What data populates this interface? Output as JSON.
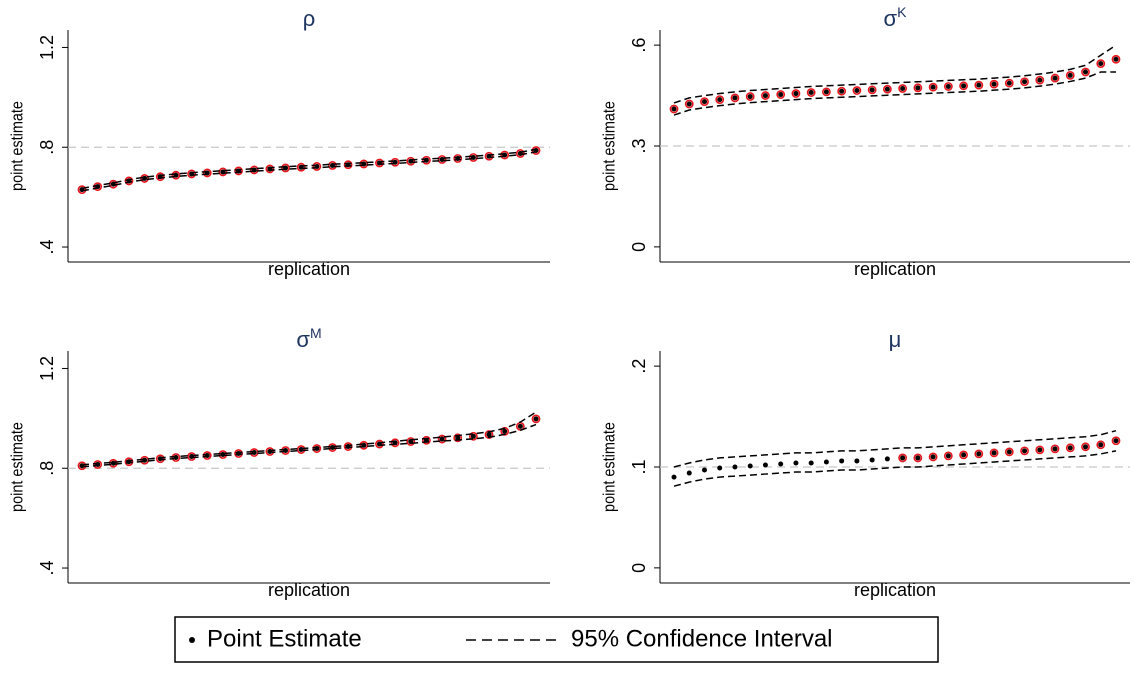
{
  "chart_data": [
    {
      "type": "line",
      "title": "ρ",
      "y_label": "point estimate",
      "x_label": "replication",
      "ylim": [
        0.34,
        1.27
      ],
      "yticks": [
        {
          "value": 0.4,
          "label": ".4"
        },
        {
          "value": 0.8,
          "label": ".8"
        },
        1.2
      ],
      "refline": 0.8,
      "series": [
        {
          "style": "dots",
          "color": "#000000",
          "values": [
            0.63,
            0.642,
            0.652,
            0.665,
            0.675,
            0.682,
            0.688,
            0.693,
            0.697,
            0.701,
            0.705,
            0.709,
            0.713,
            0.717,
            0.72,
            0.723,
            0.727,
            0.73,
            0.733,
            0.737,
            0.74,
            0.744,
            0.748,
            0.751,
            0.755,
            0.759,
            0.764,
            0.769,
            0.775,
            0.787
          ]
        },
        {
          "style": "circles",
          "color": "#e8141c",
          "values": [
            0.63,
            0.642,
            0.652,
            0.665,
            0.675,
            0.682,
            0.688,
            0.693,
            0.697,
            0.701,
            0.705,
            0.709,
            0.713,
            0.717,
            0.72,
            0.723,
            0.727,
            0.73,
            0.733,
            0.737,
            0.74,
            0.744,
            0.748,
            0.751,
            0.755,
            0.759,
            0.764,
            0.769,
            0.775,
            0.787
          ]
        },
        {
          "style": "dash",
          "color": "#000000",
          "values": [
            0.625,
            0.637,
            0.647,
            0.66,
            0.67,
            0.677,
            0.683,
            0.688,
            0.692,
            0.696,
            0.7,
            0.704,
            0.708,
            0.712,
            0.715,
            0.718,
            0.722,
            0.725,
            0.728,
            0.732,
            0.735,
            0.739,
            0.743,
            0.746,
            0.75,
            0.754,
            0.759,
            0.764,
            0.77,
            0.782
          ]
        },
        {
          "style": "dash",
          "color": "#000000",
          "values": [
            0.635,
            0.647,
            0.657,
            0.67,
            0.68,
            0.687,
            0.693,
            0.698,
            0.702,
            0.706,
            0.71,
            0.714,
            0.718,
            0.722,
            0.725,
            0.728,
            0.732,
            0.735,
            0.738,
            0.742,
            0.745,
            0.749,
            0.753,
            0.756,
            0.76,
            0.764,
            0.769,
            0.774,
            0.78,
            0.792
          ]
        }
      ]
    },
    {
      "type": "line",
      "title": "σ",
      "title_superscript": "K",
      "y_label": "point estimate",
      "x_label": "replication",
      "ylim": [
        -0.045,
        0.645
      ],
      "yticks": [
        0,
        {
          "value": 0.3,
          "label": ".3"
        },
        {
          "value": 0.6,
          "label": ".6"
        }
      ],
      "refline": 0.3,
      "series": [
        {
          "style": "dots",
          "color": "#000000",
          "values": [
            0.41,
            0.425,
            0.432,
            0.438,
            0.443,
            0.447,
            0.45,
            0.453,
            0.456,
            0.459,
            0.461,
            0.463,
            0.465,
            0.467,
            0.469,
            0.471,
            0.473,
            0.475,
            0.477,
            0.479,
            0.481,
            0.484,
            0.487,
            0.491,
            0.496,
            0.502,
            0.51,
            0.52,
            0.545,
            0.558
          ]
        },
        {
          "style": "circles",
          "color": "#e8141c",
          "values": [
            0.41,
            0.425,
            0.432,
            0.438,
            0.443,
            0.447,
            0.45,
            0.453,
            0.456,
            0.459,
            0.461,
            0.463,
            0.465,
            0.467,
            0.469,
            0.471,
            0.473,
            0.475,
            0.477,
            0.479,
            0.481,
            0.484,
            0.487,
            0.491,
            0.496,
            0.502,
            0.51,
            0.52,
            0.545,
            0.558
          ]
        },
        {
          "style": "dash",
          "color": "#000000",
          "values": [
            0.392,
            0.407,
            0.414,
            0.42,
            0.425,
            0.429,
            0.432,
            0.435,
            0.438,
            0.441,
            0.443,
            0.445,
            0.447,
            0.449,
            0.451,
            0.453,
            0.455,
            0.457,
            0.459,
            0.461,
            0.463,
            0.466,
            0.469,
            0.473,
            0.478,
            0.484,
            0.492,
            0.502,
            0.52,
            0.52
          ]
        },
        {
          "style": "dash",
          "color": "#000000",
          "values": [
            0.428,
            0.443,
            0.45,
            0.456,
            0.461,
            0.465,
            0.468,
            0.471,
            0.474,
            0.477,
            0.479,
            0.481,
            0.483,
            0.485,
            0.487,
            0.489,
            0.491,
            0.493,
            0.495,
            0.497,
            0.499,
            0.502,
            0.505,
            0.509,
            0.514,
            0.52,
            0.528,
            0.54,
            0.57,
            0.6
          ]
        }
      ]
    },
    {
      "type": "line",
      "title": "σ",
      "title_superscript": "M",
      "y_label": "point estimate",
      "x_label": "replication",
      "ylim": [
        0.34,
        1.27
      ],
      "yticks": [
        {
          "value": 0.4,
          "label": ".4"
        },
        {
          "value": 0.8,
          "label": ".8"
        },
        1.2
      ],
      "refline": 0.8,
      "series": [
        {
          "style": "dots",
          "color": "#000000",
          "values": [
            0.81,
            0.815,
            0.82,
            0.826,
            0.832,
            0.838,
            0.843,
            0.847,
            0.851,
            0.855,
            0.859,
            0.863,
            0.867,
            0.871,
            0.875,
            0.879,
            0.883,
            0.887,
            0.892,
            0.897,
            0.902,
            0.907,
            0.912,
            0.917,
            0.922,
            0.928,
            0.935,
            0.948,
            0.968,
            0.998
          ]
        },
        {
          "style": "circles",
          "color": "#e8141c",
          "values": [
            0.81,
            0.815,
            0.82,
            0.826,
            0.832,
            0.838,
            0.843,
            0.847,
            0.851,
            0.855,
            0.859,
            0.863,
            0.867,
            0.871,
            0.875,
            0.879,
            0.883,
            0.887,
            0.892,
            0.897,
            0.902,
            0.907,
            0.912,
            0.917,
            0.922,
            0.928,
            0.935,
            0.948,
            0.968,
            0.998
          ]
        },
        {
          "style": "dash",
          "color": "#000000",
          "values": [
            0.806,
            0.811,
            0.816,
            0.822,
            0.828,
            0.834,
            0.839,
            0.843,
            0.847,
            0.851,
            0.855,
            0.859,
            0.863,
            0.867,
            0.871,
            0.875,
            0.879,
            0.883,
            0.887,
            0.892,
            0.896,
            0.9,
            0.905,
            0.909,
            0.913,
            0.918,
            0.924,
            0.936,
            0.952,
            0.975
          ]
        },
        {
          "style": "dash",
          "color": "#000000",
          "values": [
            0.814,
            0.819,
            0.824,
            0.83,
            0.836,
            0.842,
            0.847,
            0.851,
            0.855,
            0.859,
            0.863,
            0.867,
            0.871,
            0.875,
            0.879,
            0.883,
            0.887,
            0.891,
            0.897,
            0.902,
            0.908,
            0.914,
            0.919,
            0.925,
            0.931,
            0.938,
            0.946,
            0.96,
            0.985,
            1.025
          ]
        }
      ]
    },
    {
      "type": "line",
      "title": "μ",
      "y_label": "point estimate",
      "x_label": "replication",
      "ylim": [
        -0.015,
        0.215
      ],
      "yticks": [
        0,
        {
          "value": 0.1,
          "label": ".1"
        },
        {
          "value": 0.2,
          "label": ".2"
        }
      ],
      "refline": 0.1,
      "series": [
        {
          "style": "dots",
          "color": "#000000",
          "values": [
            0.09,
            0.094,
            0.097,
            0.099,
            0.1,
            0.101,
            0.102,
            0.103,
            0.104,
            0.104,
            0.105,
            0.106,
            0.106,
            0.107,
            0.108,
            0.109,
            0.109,
            0.11,
            0.111,
            0.112,
            0.113,
            0.114,
            0.115,
            0.116,
            0.117,
            0.118,
            0.119,
            0.12,
            0.122,
            0.126
          ]
        },
        {
          "style": "circles",
          "color": "#e8141c",
          "values": [
            null,
            null,
            null,
            null,
            null,
            null,
            null,
            null,
            null,
            null,
            null,
            null,
            null,
            null,
            null,
            0.109,
            0.109,
            0.11,
            0.111,
            0.112,
            0.113,
            0.114,
            0.115,
            0.116,
            0.117,
            0.118,
            0.119,
            0.12,
            0.122,
            0.126
          ]
        },
        {
          "style": "dash",
          "color": "#000000",
          "values": [
            0.081,
            0.085,
            0.088,
            0.09,
            0.091,
            0.092,
            0.093,
            0.094,
            0.095,
            0.095,
            0.096,
            0.097,
            0.097,
            0.098,
            0.099,
            0.1,
            0.1,
            0.101,
            0.102,
            0.103,
            0.104,
            0.105,
            0.106,
            0.107,
            0.108,
            0.109,
            0.11,
            0.111,
            0.113,
            0.116
          ]
        },
        {
          "style": "dash",
          "color": "#000000",
          "values": [
            0.1,
            0.104,
            0.107,
            0.109,
            0.11,
            0.111,
            0.112,
            0.113,
            0.114,
            0.114,
            0.115,
            0.116,
            0.116,
            0.117,
            0.118,
            0.119,
            0.119,
            0.12,
            0.121,
            0.122,
            0.123,
            0.124,
            0.125,
            0.126,
            0.127,
            0.128,
            0.129,
            0.13,
            0.132,
            0.136
          ]
        }
      ]
    }
  ],
  "legend": {
    "items": [
      "Point Estimate",
      "95% Confidence Interval"
    ]
  }
}
